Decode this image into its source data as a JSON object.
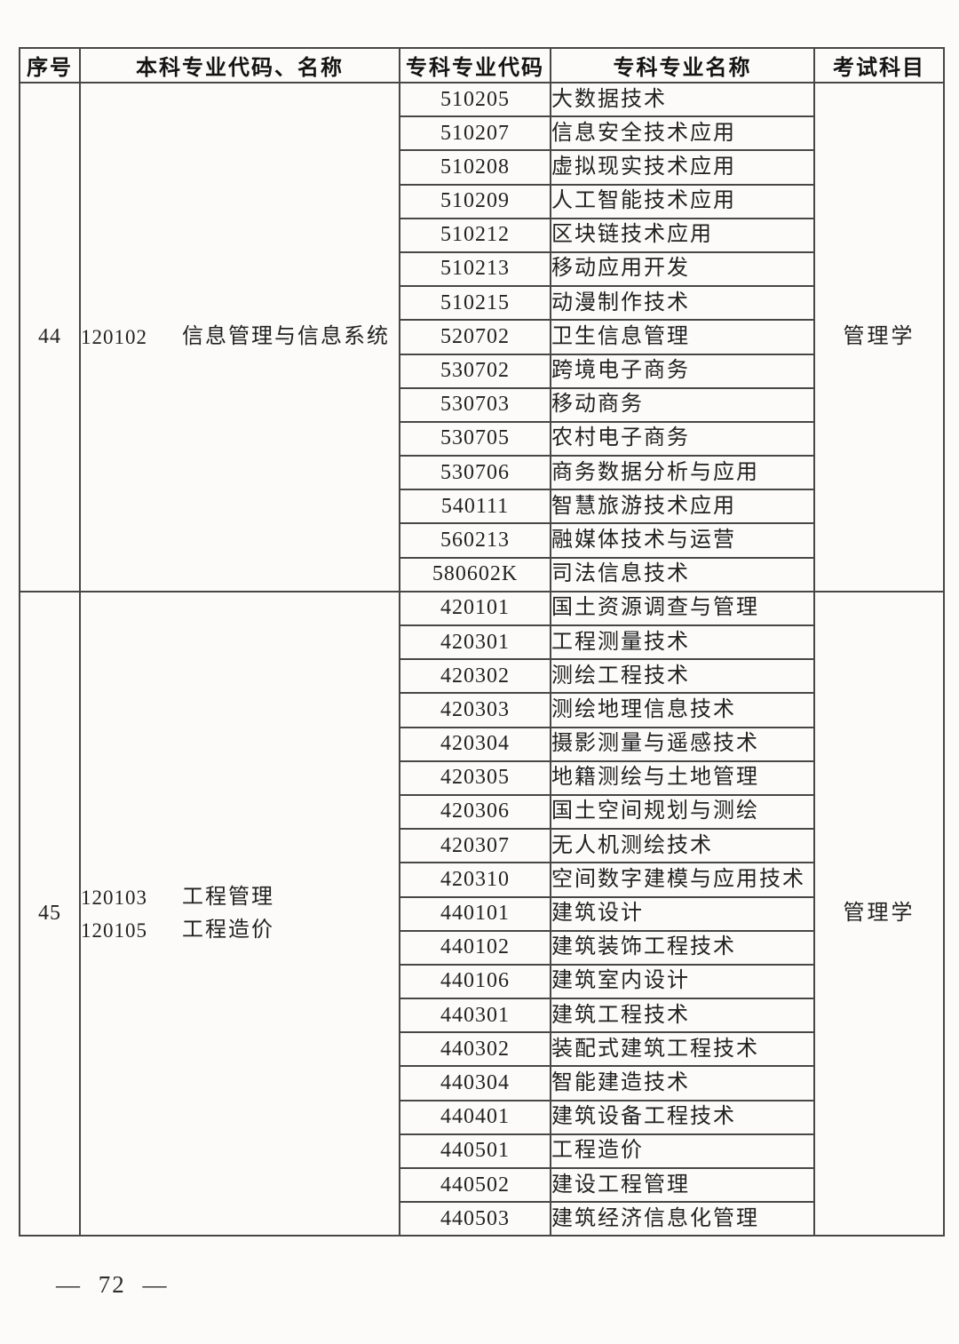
{
  "page": {
    "footer_page_number": "— 72 —"
  },
  "table": {
    "headers": [
      "序号",
      "本科专业代码、名称",
      "专科专业代码",
      "专科专业名称",
      "考试科目"
    ],
    "sections": [
      {
        "seq": "44",
        "undergrad_majors": [
          {
            "code": "120102",
            "name": "信息管理与信息系统"
          }
        ],
        "exam_subject": "管理学",
        "college_majors": [
          {
            "code": "510205",
            "name": "大数据技术"
          },
          {
            "code": "510207",
            "name": "信息安全技术应用"
          },
          {
            "code": "510208",
            "name": "虚拟现实技术应用"
          },
          {
            "code": "510209",
            "name": "人工智能技术应用"
          },
          {
            "code": "510212",
            "name": "区块链技术应用"
          },
          {
            "code": "510213",
            "name": "移动应用开发"
          },
          {
            "code": "510215",
            "name": "动漫制作技术"
          },
          {
            "code": "520702",
            "name": "卫生信息管理"
          },
          {
            "code": "530702",
            "name": "跨境电子商务"
          },
          {
            "code": "530703",
            "name": "移动商务"
          },
          {
            "code": "530705",
            "name": "农村电子商务"
          },
          {
            "code": "530706",
            "name": "商务数据分析与应用"
          },
          {
            "code": "540111",
            "name": "智慧旅游技术应用"
          },
          {
            "code": "560213",
            "name": "融媒体技术与运营"
          },
          {
            "code": "580602K",
            "name": "司法信息技术"
          }
        ]
      },
      {
        "seq": "45",
        "undergrad_majors": [
          {
            "code": "120103",
            "name": "工程管理"
          },
          {
            "code": "120105",
            "name": "工程造价"
          }
        ],
        "exam_subject": "管理学",
        "college_majors": [
          {
            "code": "420101",
            "name": "国土资源调查与管理"
          },
          {
            "code": "420301",
            "name": "工程测量技术"
          },
          {
            "code": "420302",
            "name": "测绘工程技术"
          },
          {
            "code": "420303",
            "name": "测绘地理信息技术"
          },
          {
            "code": "420304",
            "name": "摄影测量与遥感技术"
          },
          {
            "code": "420305",
            "name": "地籍测绘与土地管理"
          },
          {
            "code": "420306",
            "name": "国土空间规划与测绘"
          },
          {
            "code": "420307",
            "name": "无人机测绘技术"
          },
          {
            "code": "420310",
            "name": "空间数字建模与应用技术"
          },
          {
            "code": "440101",
            "name": "建筑设计"
          },
          {
            "code": "440102",
            "name": "建筑装饰工程技术"
          },
          {
            "code": "440106",
            "name": "建筑室内设计"
          },
          {
            "code": "440301",
            "name": "建筑工程技术"
          },
          {
            "code": "440302",
            "name": "装配式建筑工程技术"
          },
          {
            "code": "440304",
            "name": "智能建造技术"
          },
          {
            "code": "440401",
            "name": "建筑设备工程技术"
          },
          {
            "code": "440501",
            "name": "工程造价"
          },
          {
            "code": "440502",
            "name": "建设工程管理"
          },
          {
            "code": "440503",
            "name": "建筑经济信息化管理"
          }
        ]
      }
    ]
  }
}
